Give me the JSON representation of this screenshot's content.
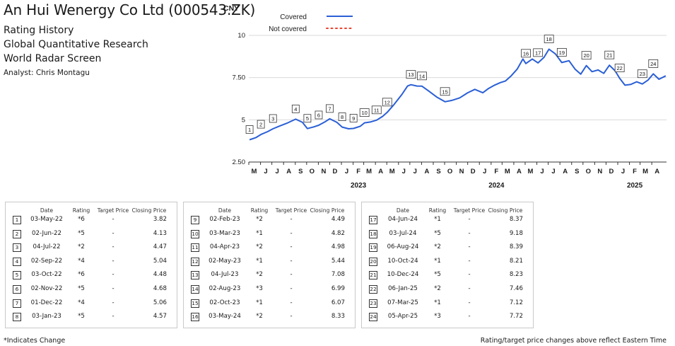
{
  "header": {
    "company": "An Hui Wenergy Co Ltd (000543.ZK)",
    "line1": "Rating History",
    "line2": "Global Quantitative Research",
    "line3": "World Radar Screen",
    "analyst": "Analyst: Chris Montagu"
  },
  "chart_data": {
    "type": "line",
    "ylabel": "CNY",
    "ylim": [
      2.5,
      10.5
    ],
    "yticks": [
      "2.50",
      "5",
      "7.50",
      "10"
    ],
    "ytick_values": [
      2.5,
      5,
      7.5,
      10
    ],
    "x_range": [
      "2022-05-01",
      "2025-05-10"
    ],
    "month_ticks": [
      "M",
      "J",
      "J",
      "A",
      "S",
      "O",
      "N",
      "D",
      "J",
      "F",
      "M",
      "A",
      "M",
      "J",
      "J",
      "A",
      "S",
      "O",
      "N",
      "D",
      "J",
      "F",
      "M",
      "A",
      "M",
      "J",
      "J",
      "A",
      "S",
      "O",
      "N",
      "D",
      "J",
      "F",
      "M",
      "A"
    ],
    "year_labels": [
      {
        "label": "2023",
        "date": "2023-02-15"
      },
      {
        "label": "2024",
        "date": "2024-02-15"
      },
      {
        "label": "2025",
        "date": "2025-02-15"
      }
    ],
    "legend": [
      {
        "label": "Covered",
        "style": "solid",
        "color": "#2a5fd6"
      },
      {
        "label": "Not covered",
        "style": "dotted",
        "color": "#e8402c"
      }
    ],
    "grid": "horizontal",
    "series": [
      {
        "name": "Covered",
        "color": "#2a5fd6",
        "points": [
          [
            "2022-05-03",
            3.82
          ],
          [
            "2022-05-20",
            3.95
          ],
          [
            "2022-06-02",
            4.13
          ],
          [
            "2022-06-20",
            4.3
          ],
          [
            "2022-07-04",
            4.47
          ],
          [
            "2022-07-20",
            4.62
          ],
          [
            "2022-08-10",
            4.8
          ],
          [
            "2022-09-02",
            5.04
          ],
          [
            "2022-09-20",
            4.85
          ],
          [
            "2022-10-03",
            4.48
          ],
          [
            "2022-10-20",
            4.58
          ],
          [
            "2022-11-02",
            4.68
          ],
          [
            "2022-11-20",
            4.9
          ],
          [
            "2022-12-01",
            5.06
          ],
          [
            "2022-12-20",
            4.85
          ],
          [
            "2023-01-03",
            4.57
          ],
          [
            "2023-01-20",
            4.47
          ],
          [
            "2023-02-02",
            4.49
          ],
          [
            "2023-02-20",
            4.62
          ],
          [
            "2023-03-03",
            4.82
          ],
          [
            "2023-03-20",
            4.88
          ],
          [
            "2023-04-04",
            4.98
          ],
          [
            "2023-04-20",
            5.2
          ],
          [
            "2023-05-02",
            5.44
          ],
          [
            "2023-05-20",
            5.9
          ],
          [
            "2023-06-10",
            6.5
          ],
          [
            "2023-06-25",
            7.0
          ],
          [
            "2023-07-04",
            7.08
          ],
          [
            "2023-07-20",
            7.0
          ],
          [
            "2023-08-02",
            6.99
          ],
          [
            "2023-08-20",
            6.7
          ],
          [
            "2023-09-10",
            6.35
          ],
          [
            "2023-10-02",
            6.07
          ],
          [
            "2023-10-20",
            6.15
          ],
          [
            "2023-11-10",
            6.3
          ],
          [
            "2023-12-01",
            6.6
          ],
          [
            "2023-12-20",
            6.8
          ],
          [
            "2024-01-10",
            6.6
          ],
          [
            "2024-01-25",
            6.85
          ],
          [
            "2024-02-10",
            7.05
          ],
          [
            "2024-02-25",
            7.2
          ],
          [
            "2024-03-10",
            7.3
          ],
          [
            "2024-03-25",
            7.6
          ],
          [
            "2024-04-10",
            8.0
          ],
          [
            "2024-04-25",
            8.6
          ],
          [
            "2024-05-03",
            8.33
          ],
          [
            "2024-05-20",
            8.6
          ],
          [
            "2024-06-04",
            8.37
          ],
          [
            "2024-06-20",
            8.7
          ],
          [
            "2024-07-03",
            9.18
          ],
          [
            "2024-07-20",
            8.9
          ],
          [
            "2024-08-06",
            8.39
          ],
          [
            "2024-08-25",
            8.5
          ],
          [
            "2024-09-10",
            8.0
          ],
          [
            "2024-09-25",
            7.7
          ],
          [
            "2024-10-10",
            8.21
          ],
          [
            "2024-10-25",
            7.85
          ],
          [
            "2024-11-10",
            7.95
          ],
          [
            "2024-11-25",
            7.75
          ],
          [
            "2024-12-10",
            8.23
          ],
          [
            "2024-12-25",
            7.9
          ],
          [
            "2025-01-06",
            7.46
          ],
          [
            "2025-01-20",
            7.05
          ],
          [
            "2025-02-05",
            7.1
          ],
          [
            "2025-02-20",
            7.25
          ],
          [
            "2025-03-07",
            7.12
          ],
          [
            "2025-03-22",
            7.35
          ],
          [
            "2025-04-05",
            7.72
          ],
          [
            "2025-04-20",
            7.4
          ],
          [
            "2025-05-08",
            7.6
          ]
        ]
      }
    ],
    "rating_markers": [
      {
        "n": "1",
        "date": "2022-05-03",
        "price": 3.82
      },
      {
        "n": "2",
        "date": "2022-06-02",
        "price": 4.13
      },
      {
        "n": "3",
        "date": "2022-07-04",
        "price": 4.47
      },
      {
        "n": "4",
        "date": "2022-09-02",
        "price": 5.04
      },
      {
        "n": "5",
        "date": "2022-10-03",
        "price": 4.48
      },
      {
        "n": "6",
        "date": "2022-11-02",
        "price": 4.68
      },
      {
        "n": "7",
        "date": "2022-12-01",
        "price": 5.06
      },
      {
        "n": "8",
        "date": "2023-01-03",
        "price": 4.57
      },
      {
        "n": "9",
        "date": "2023-02-02",
        "price": 4.49
      },
      {
        "n": "10",
        "date": "2023-03-03",
        "price": 4.82
      },
      {
        "n": "11",
        "date": "2023-04-04",
        "price": 4.98
      },
      {
        "n": "12",
        "date": "2023-05-02",
        "price": 5.44
      },
      {
        "n": "13",
        "date": "2023-07-04",
        "price": 7.08
      },
      {
        "n": "14",
        "date": "2023-08-02",
        "price": 6.99
      },
      {
        "n": "15",
        "date": "2023-10-02",
        "price": 6.07
      },
      {
        "n": "16",
        "date": "2024-05-03",
        "price": 8.33
      },
      {
        "n": "17",
        "date": "2024-06-04",
        "price": 8.37
      },
      {
        "n": "18",
        "date": "2024-07-03",
        "price": 9.18
      },
      {
        "n": "19",
        "date": "2024-08-06",
        "price": 8.39
      },
      {
        "n": "20",
        "date": "2024-10-10",
        "price": 8.21
      },
      {
        "n": "21",
        "date": "2024-12-10",
        "price": 8.23
      },
      {
        "n": "22",
        "date": "2025-01-06",
        "price": 7.46
      },
      {
        "n": "23",
        "date": "2025-03-07",
        "price": 7.12
      },
      {
        "n": "24",
        "date": "2025-04-05",
        "price": 7.72
      }
    ]
  },
  "table": {
    "headers": {
      "date": "Date",
      "rating": "Rating",
      "target": "Target Price",
      "close": "Closing Price"
    },
    "rows": [
      {
        "n": "1",
        "date": "03-May-22",
        "rating": "*6",
        "target": "-",
        "close": "3.82"
      },
      {
        "n": "2",
        "date": "02-Jun-22",
        "rating": "*5",
        "target": "-",
        "close": "4.13"
      },
      {
        "n": "3",
        "date": "04-Jul-22",
        "rating": "*2",
        "target": "-",
        "close": "4.47"
      },
      {
        "n": "4",
        "date": "02-Sep-22",
        "rating": "*4",
        "target": "-",
        "close": "5.04"
      },
      {
        "n": "5",
        "date": "03-Oct-22",
        "rating": "*6",
        "target": "-",
        "close": "4.48"
      },
      {
        "n": "6",
        "date": "02-Nov-22",
        "rating": "*5",
        "target": "-",
        "close": "4.68"
      },
      {
        "n": "7",
        "date": "01-Dec-22",
        "rating": "*4",
        "target": "-",
        "close": "5.06"
      },
      {
        "n": "8",
        "date": "03-Jan-23",
        "rating": "*5",
        "target": "-",
        "close": "4.57"
      },
      {
        "n": "9",
        "date": "02-Feb-23",
        "rating": "*2",
        "target": "-",
        "close": "4.49"
      },
      {
        "n": "10",
        "date": "03-Mar-23",
        "rating": "*1",
        "target": "-",
        "close": "4.82"
      },
      {
        "n": "11",
        "date": "04-Apr-23",
        "rating": "*2",
        "target": "-",
        "close": "4.98"
      },
      {
        "n": "12",
        "date": "02-May-23",
        "rating": "*1",
        "target": "-",
        "close": "5.44"
      },
      {
        "n": "13",
        "date": "04-Jul-23",
        "rating": "*2",
        "target": "-",
        "close": "7.08"
      },
      {
        "n": "14",
        "date": "02-Aug-23",
        "rating": "*3",
        "target": "-",
        "close": "6.99"
      },
      {
        "n": "15",
        "date": "02-Oct-23",
        "rating": "*1",
        "target": "-",
        "close": "6.07"
      },
      {
        "n": "16",
        "date": "03-May-24",
        "rating": "*2",
        "target": "-",
        "close": "8.33"
      },
      {
        "n": "17",
        "date": "04-Jun-24",
        "rating": "*1",
        "target": "-",
        "close": "8.37"
      },
      {
        "n": "18",
        "date": "03-Jul-24",
        "rating": "*5",
        "target": "-",
        "close": "9.18"
      },
      {
        "n": "19",
        "date": "06-Aug-24",
        "rating": "*2",
        "target": "-",
        "close": "8.39"
      },
      {
        "n": "20",
        "date": "10-Oct-24",
        "rating": "*1",
        "target": "-",
        "close": "8.21"
      },
      {
        "n": "21",
        "date": "10-Dec-24",
        "rating": "*5",
        "target": "-",
        "close": "8.23"
      },
      {
        "n": "22",
        "date": "06-Jan-25",
        "rating": "*2",
        "target": "-",
        "close": "7.46"
      },
      {
        "n": "23",
        "date": "07-Mar-25",
        "rating": "*1",
        "target": "-",
        "close": "7.12"
      },
      {
        "n": "24",
        "date": "05-Apr-25",
        "rating": "*3",
        "target": "-",
        "close": "7.72"
      }
    ]
  },
  "footer": {
    "left": "*Indicates Change",
    "right": "Rating/target price changes above reflect Eastern Time"
  },
  "colors": {
    "line": "#2a5fd6",
    "not_covered": "#e8402c",
    "grid": "#d9d9d9"
  }
}
